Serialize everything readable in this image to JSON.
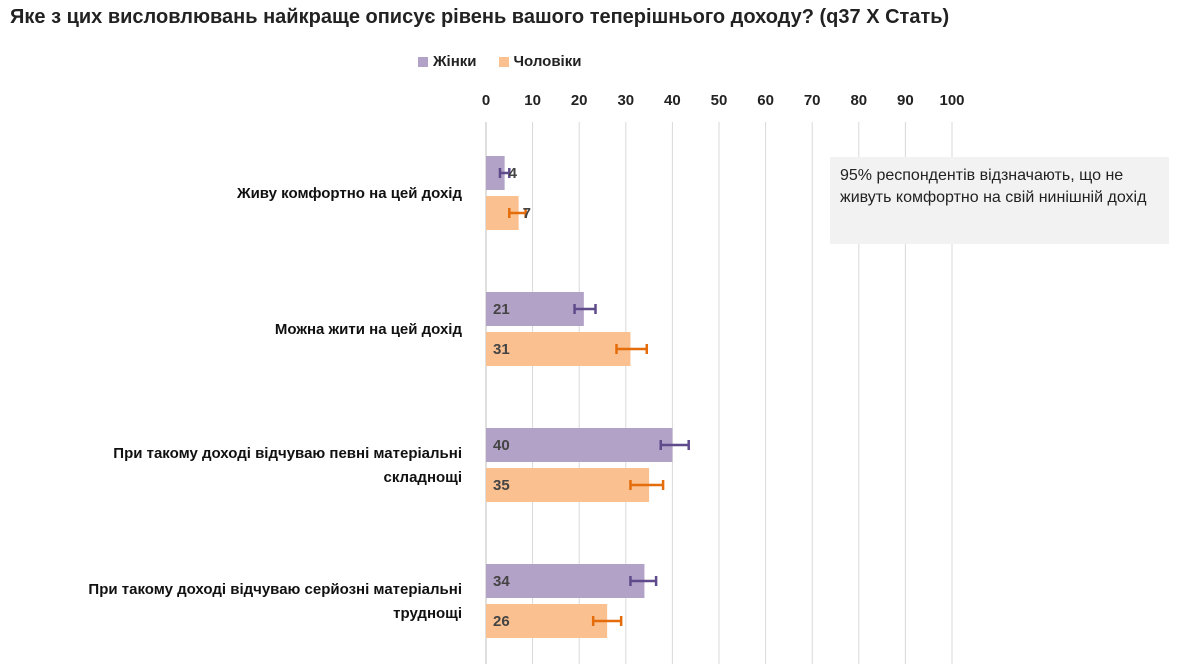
{
  "chart_data": {
    "type": "bar",
    "orientation": "horizontal",
    "title": "Яке з цих висловлювань найкраще описує рівень вашого теперішнього доходу? (q37 X Стать)",
    "categories": [
      [
        "Живу комфортно на цей дохід"
      ],
      [
        "Можна жити на цей дохід"
      ],
      [
        "При такому доході відчуваю певні матеріальні",
        "складнощі"
      ],
      [
        "При такому доході відчуваю серйозні матеріальні",
        "труднощі"
      ]
    ],
    "series": [
      {
        "name": "Жінки",
        "color": "#b3a2c7",
        "error_color": "#5f4b8b",
        "values": [
          4,
          21,
          40,
          34
        ],
        "error_low": [
          3,
          19,
          37.5,
          31
        ],
        "error_high": [
          5,
          23.5,
          43.5,
          36.5
        ]
      },
      {
        "name": "Чоловіки",
        "color": "#fac090",
        "error_color": "#e46c0a",
        "values": [
          7,
          31,
          35,
          26
        ],
        "error_low": [
          5,
          28,
          31,
          23
        ],
        "error_high": [
          8.5,
          34.5,
          38,
          29
        ]
      }
    ],
    "xlim": [
      0,
      100
    ],
    "xticks": [
      0,
      10,
      20,
      30,
      40,
      50,
      60,
      70,
      80,
      90,
      100
    ],
    "legend_position": "top",
    "axis_position": "top",
    "grid": true,
    "annotation": "95% респондентів відзначають, що не живуть комфортно на свій нинішній дохід"
  }
}
